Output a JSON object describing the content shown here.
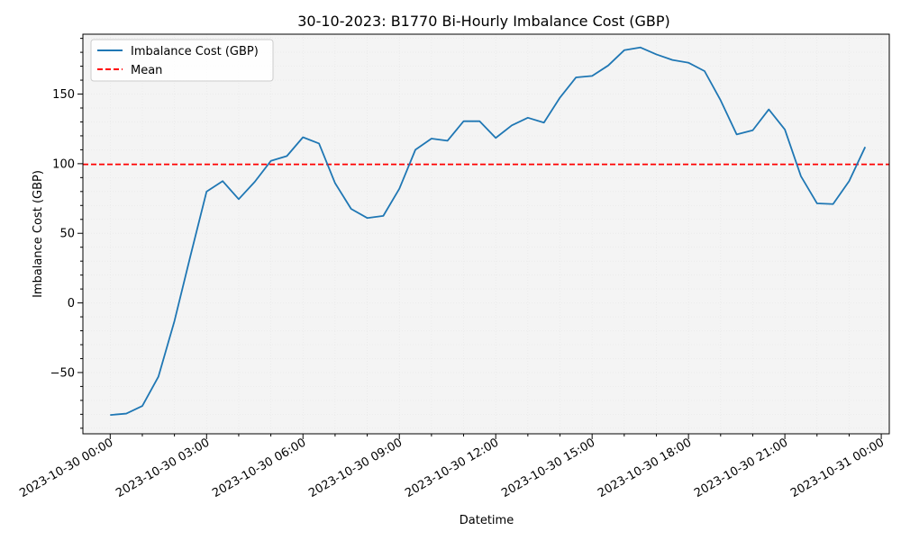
{
  "chart_data": {
    "type": "line",
    "title": "30-10-2023: B1770 Bi-Hourly Imbalance Cost (GBP)",
    "xlabel": "Datetime",
    "ylabel": "Imbalance Cost (GBP)",
    "x_start": "2023-10-30 00:00",
    "x_step_minutes": 30,
    "x_tick_labels": [
      "2023-10-30 00:00",
      "2023-10-30 03:00",
      "2023-10-30 06:00",
      "2023-10-30 09:00",
      "2023-10-30 12:00",
      "2023-10-30 15:00",
      "2023-10-30 18:00",
      "2023-10-30 21:00",
      "2023-10-31 00:00"
    ],
    "y_ticks": [
      -50,
      0,
      50,
      100,
      150
    ],
    "y_tick_labels": [
      "−50",
      "0",
      "50",
      "100",
      "150"
    ],
    "ylim": [
      -94,
      193
    ],
    "xlim_hours": [
      -0.85,
      24.25
    ],
    "grid": true,
    "legend_position": "top-left",
    "series": [
      {
        "name": "Imbalance Cost (GBP)",
        "color": "#1f77b4",
        "values": [
          -80.5,
          -79.5,
          -74,
          -53,
          -13,
          34,
          80,
          87.5,
          74.5,
          87,
          102,
          105.5,
          119,
          114.5,
          86,
          67.5,
          61,
          62.5,
          82,
          110,
          118,
          116.5,
          130.5,
          130.5,
          118.5,
          127.5,
          133,
          129.5,
          147.5,
          162,
          163,
          170.5,
          181.5,
          183.5,
          178.5,
          174.5,
          172.5,
          166.5,
          145.5,
          121,
          124,
          139,
          124.5,
          91,
          71.5,
          71,
          87.5,
          112
        ]
      },
      {
        "name": "Mean",
        "color": "#ff0000",
        "dashed": true,
        "value": 99.5
      }
    ]
  }
}
